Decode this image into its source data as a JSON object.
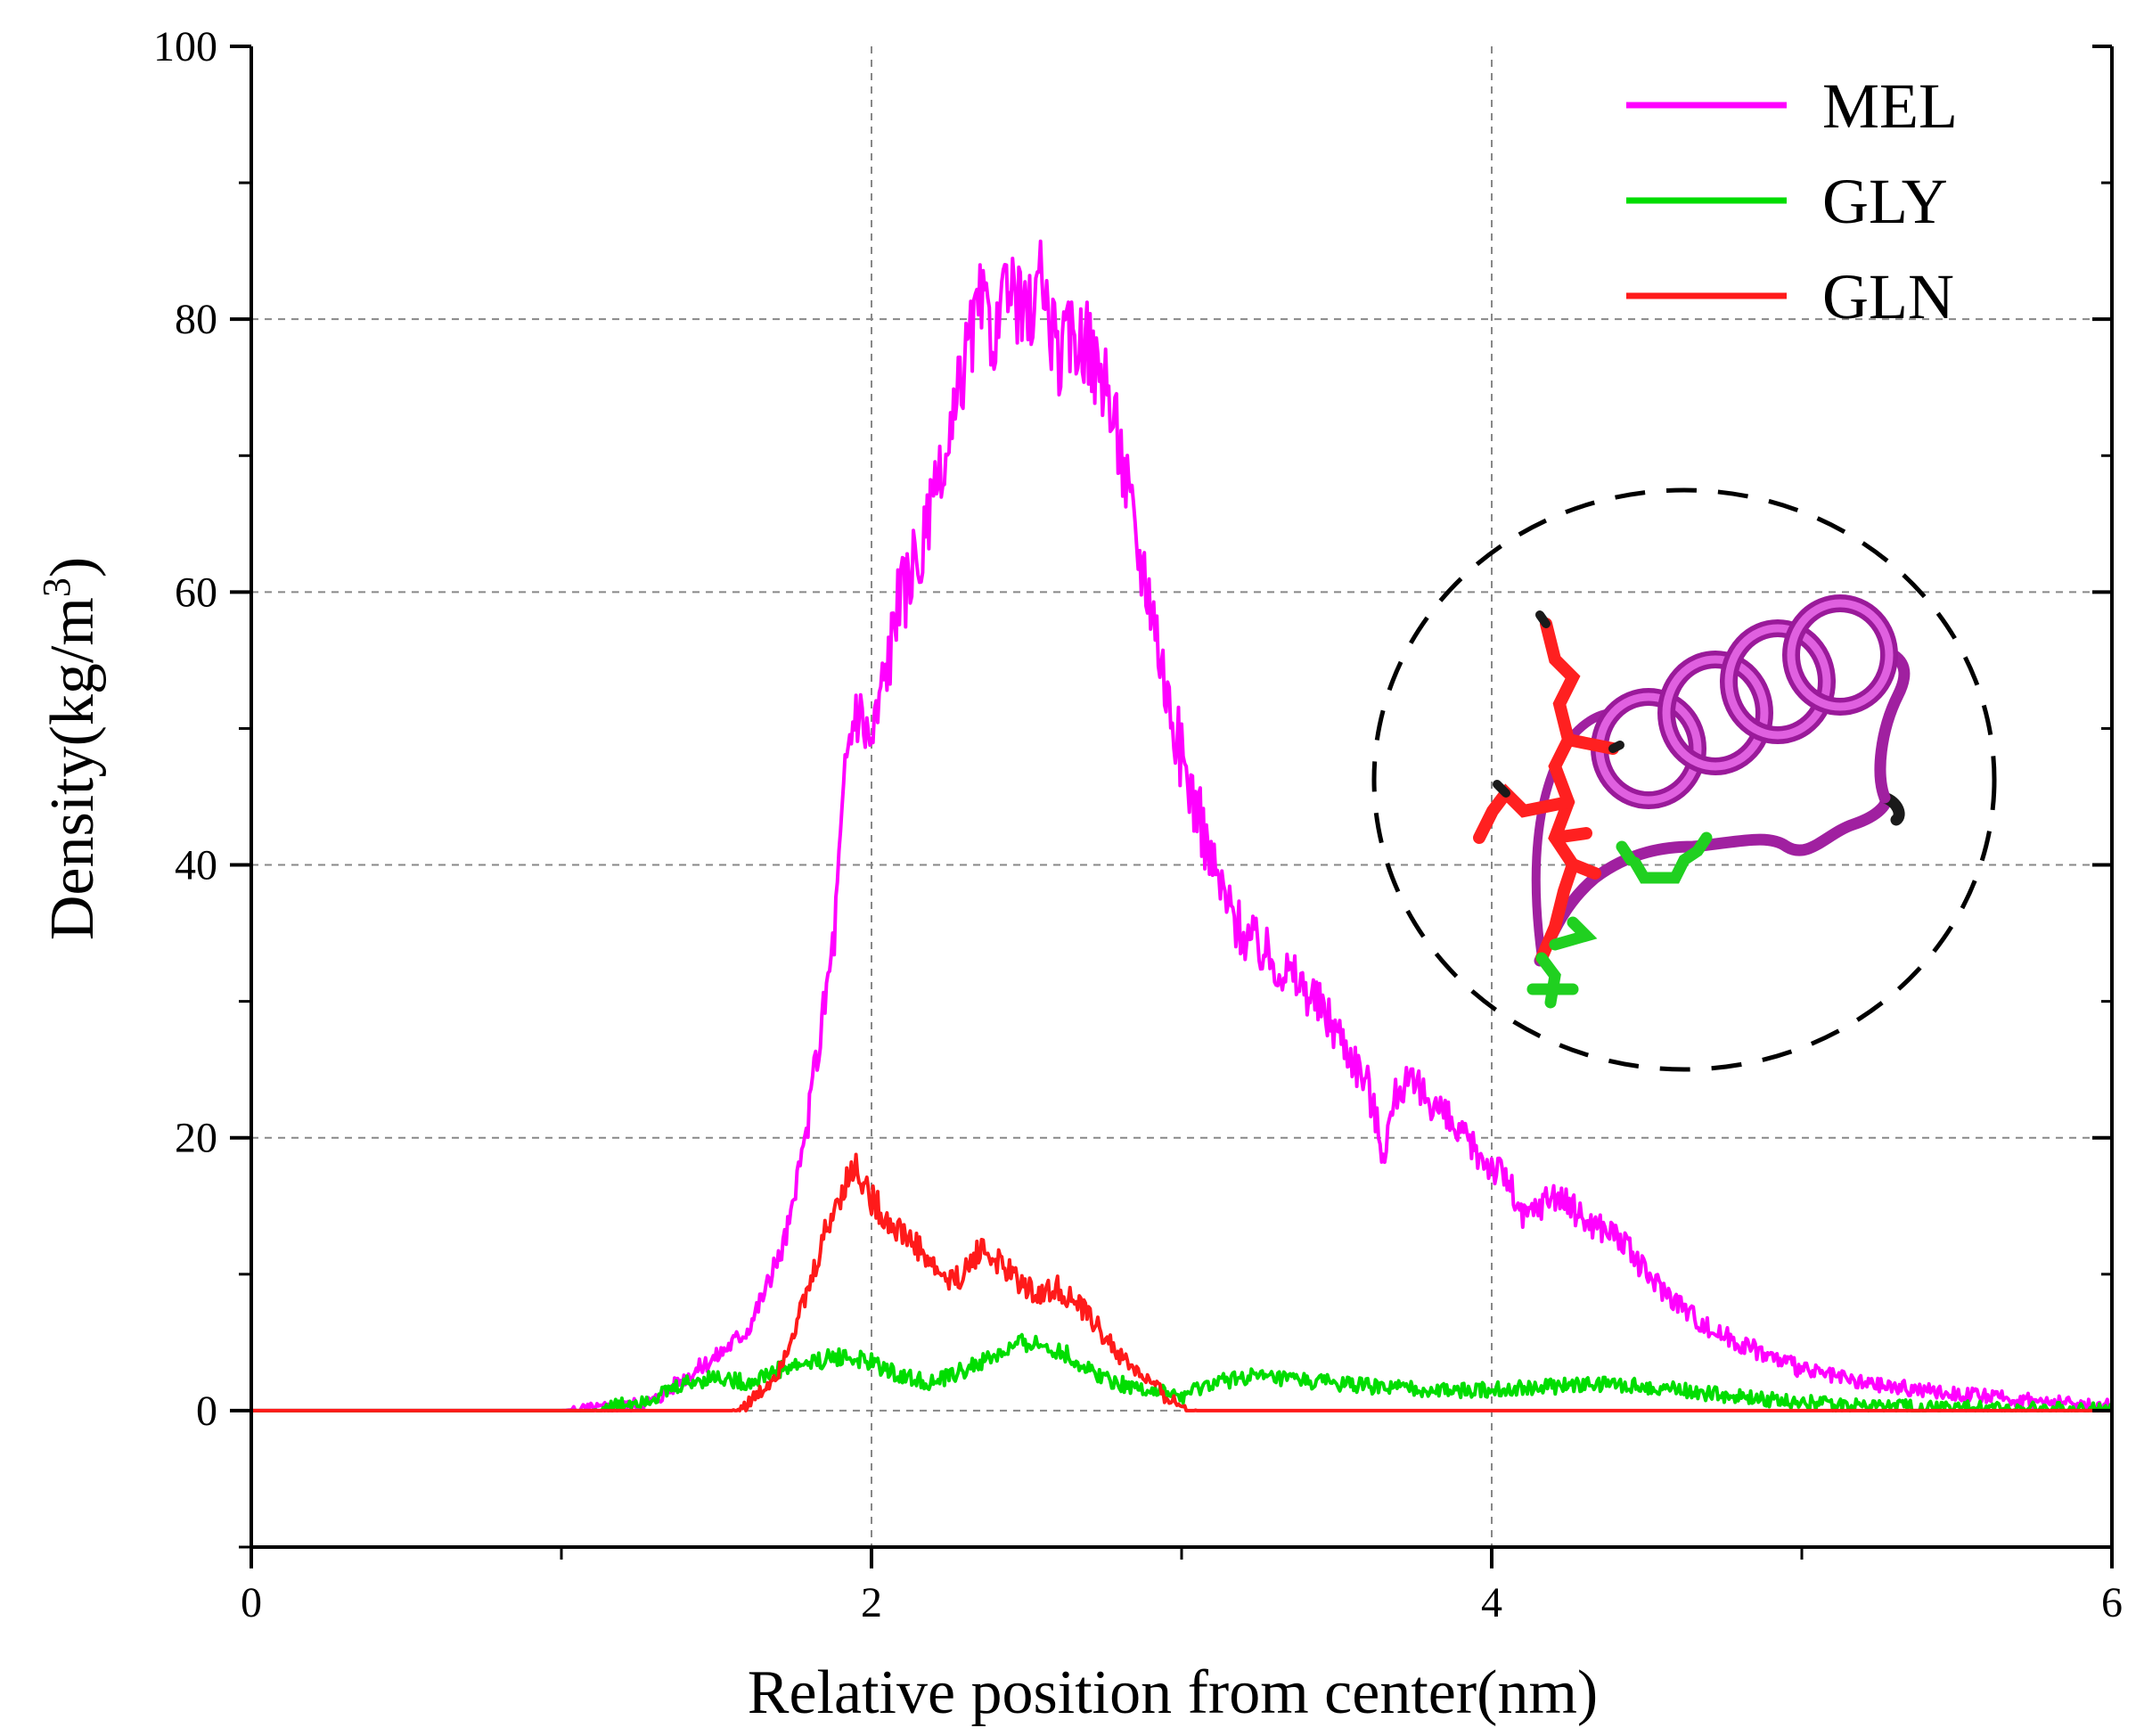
{
  "chart_data": {
    "type": "line",
    "title": "",
    "xlabel": "Relative position from center(nm)",
    "ylabel": {
      "main": "Density(kg/m",
      "superscript": "3",
      "close": ")"
    },
    "xlim": [
      0,
      6
    ],
    "ylim": [
      -10,
      100
    ],
    "xticks": [
      0,
      2,
      4,
      6
    ],
    "xticks_minor": [
      1,
      3,
      5
    ],
    "yticks": [
      0,
      20,
      40,
      60,
      80,
      100
    ],
    "yticks_minor": [
      -10,
      10,
      30,
      50,
      70,
      90
    ],
    "grid": true,
    "legend_position": "top-right",
    "series": [
      {
        "name": "MEL",
        "color": "#ff00ff",
        "points": [
          [
            0,
            0
          ],
          [
            1.0,
            0
          ],
          [
            1.2,
            0.3
          ],
          [
            1.3,
            0.8
          ],
          [
            1.4,
            2.5
          ],
          [
            1.5,
            4
          ],
          [
            1.6,
            6
          ],
          [
            1.7,
            11
          ],
          [
            1.75,
            15
          ],
          [
            1.8,
            22
          ],
          [
            1.85,
            30
          ],
          [
            1.88,
            35
          ],
          [
            1.92,
            48
          ],
          [
            1.95,
            52
          ],
          [
            2.0,
            49
          ],
          [
            2.05,
            55
          ],
          [
            2.1,
            60
          ],
          [
            2.15,
            62
          ],
          [
            2.2,
            66
          ],
          [
            2.25,
            70
          ],
          [
            2.3,
            77
          ],
          [
            2.35,
            81
          ],
          [
            2.4,
            79
          ],
          [
            2.45,
            82
          ],
          [
            2.5,
            80
          ],
          [
            2.55,
            83
          ],
          [
            2.6,
            77
          ],
          [
            2.65,
            79
          ],
          [
            2.7,
            78
          ],
          [
            2.75,
            75
          ],
          [
            2.8,
            71
          ],
          [
            2.85,
            64
          ],
          [
            2.9,
            60
          ],
          [
            2.95,
            53
          ],
          [
            3.0,
            48
          ],
          [
            3.05,
            44
          ],
          [
            3.1,
            40
          ],
          [
            3.15,
            37
          ],
          [
            3.2,
            35
          ],
          [
            3.3,
            33
          ],
          [
            3.4,
            31
          ],
          [
            3.5,
            28
          ],
          [
            3.6,
            24
          ],
          [
            3.65,
            19
          ],
          [
            3.7,
            24
          ],
          [
            3.8,
            23
          ],
          [
            3.9,
            20
          ],
          [
            4.0,
            18
          ],
          [
            4.05,
            17
          ],
          [
            4.1,
            14
          ],
          [
            4.15,
            15
          ],
          [
            4.2,
            16
          ],
          [
            4.25,
            15
          ],
          [
            4.3,
            14
          ],
          [
            4.4,
            13
          ],
          [
            4.5,
            10
          ],
          [
            4.6,
            8
          ],
          [
            4.7,
            6
          ],
          [
            4.8,
            5
          ],
          [
            4.9,
            4
          ],
          [
            5.0,
            3
          ],
          [
            5.2,
            2
          ],
          [
            5.4,
            1.5
          ],
          [
            5.6,
            1
          ],
          [
            5.8,
            0.6
          ],
          [
            6.0,
            0.3
          ]
        ]
      },
      {
        "name": "GLY",
        "color": "#00dd00",
        "points": [
          [
            0,
            0
          ],
          [
            1.1,
            0
          ],
          [
            1.2,
            0.5
          ],
          [
            1.3,
            1
          ],
          [
            1.4,
            2
          ],
          [
            1.5,
            2.5
          ],
          [
            1.6,
            2
          ],
          [
            1.7,
            3
          ],
          [
            1.8,
            3.5
          ],
          [
            1.9,
            4
          ],
          [
            2.0,
            3.5
          ],
          [
            2.1,
            2.5
          ],
          [
            2.2,
            2
          ],
          [
            2.3,
            3
          ],
          [
            2.4,
            4
          ],
          [
            2.5,
            5
          ],
          [
            2.6,
            4.5
          ],
          [
            2.7,
            3
          ],
          [
            2.8,
            2
          ],
          [
            2.9,
            1.5
          ],
          [
            3.0,
            1
          ],
          [
            3.1,
            2
          ],
          [
            3.2,
            2.5
          ],
          [
            3.4,
            2.2
          ],
          [
            3.6,
            1.8
          ],
          [
            3.8,
            1.5
          ],
          [
            4.0,
            1.5
          ],
          [
            4.2,
            1.8
          ],
          [
            4.4,
            2
          ],
          [
            4.6,
            1.5
          ],
          [
            4.8,
            1
          ],
          [
            5.0,
            0.6
          ],
          [
            5.2,
            0.4
          ],
          [
            5.6,
            0.2
          ],
          [
            6.0,
            0.1
          ]
        ]
      },
      {
        "name": "GLN",
        "color": "#ff1a1a",
        "points": [
          [
            0,
            0
          ],
          [
            1.55,
            0
          ],
          [
            1.6,
            0.5
          ],
          [
            1.65,
            1.5
          ],
          [
            1.7,
            3
          ],
          [
            1.75,
            6
          ],
          [
            1.8,
            9
          ],
          [
            1.85,
            13
          ],
          [
            1.9,
            16
          ],
          [
            1.95,
            18
          ],
          [
            2.0,
            15.5
          ],
          [
            2.05,
            14
          ],
          [
            2.1,
            13
          ],
          [
            2.15,
            12
          ],
          [
            2.2,
            10.5
          ],
          [
            2.25,
            9.5
          ],
          [
            2.3,
            10
          ],
          [
            2.35,
            12
          ],
          [
            2.4,
            11
          ],
          [
            2.45,
            10
          ],
          [
            2.5,
            9
          ],
          [
            2.55,
            8.5
          ],
          [
            2.6,
            9
          ],
          [
            2.65,
            8
          ],
          [
            2.7,
            7
          ],
          [
            2.75,
            5.5
          ],
          [
            2.8,
            4
          ],
          [
            2.85,
            3
          ],
          [
            2.9,
            2
          ],
          [
            2.95,
            1
          ],
          [
            3.0,
            0.3
          ],
          [
            3.05,
            0
          ],
          [
            6.0,
            0
          ]
        ]
      }
    ]
  },
  "inset": {
    "description_icon": "protein-helix-structure-icon"
  }
}
